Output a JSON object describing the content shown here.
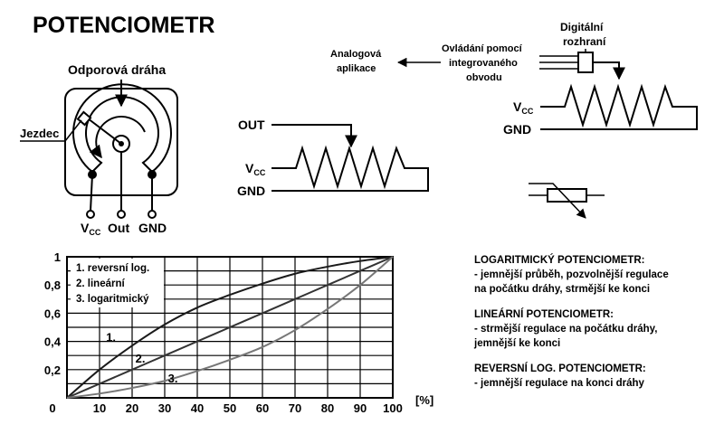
{
  "title": "POTENCIOMETR",
  "potentiometer": {
    "track_label": "Odporová dráha",
    "wiper_label": "Jezdec",
    "pin_labels": {
      "vcc": "V",
      "vcc_sub": "CC",
      "out": "Out",
      "gnd": "GND"
    }
  },
  "circuit_out": {
    "out_label": "OUT",
    "vcc_label": "V",
    "vcc_sub": "CC",
    "gnd_label": "GND"
  },
  "digital": {
    "interface_label": [
      "Digitální",
      "rozhraní"
    ],
    "control_label": [
      "Ovládání pomocí",
      "integrovaného",
      "obvodu"
    ],
    "analog_label": [
      "Analogová",
      "aplikace"
    ],
    "vcc_label": "V",
    "vcc_sub": "CC",
    "gnd_label": "GND"
  },
  "chart_data": {
    "type": "line",
    "x": [
      0,
      10,
      20,
      30,
      40,
      50,
      60,
      70,
      80,
      90,
      100
    ],
    "xlim": [
      0,
      100
    ],
    "ylim": [
      0,
      1
    ],
    "x_unit_label": "[%]",
    "x_tick_labels": [
      "0",
      "10",
      "20",
      "30",
      "40",
      "50",
      "60",
      "70",
      "80",
      "90",
      "100"
    ],
    "y_tick_labels": [
      "0,2",
      "0,4",
      "0,6",
      "0,8",
      "1"
    ],
    "y_tick_values": [
      0.2,
      0.4,
      0.6,
      0.8,
      1
    ],
    "grid": true,
    "legend": [
      "1. reversní log.",
      "2. lineární",
      "3. logaritmický"
    ],
    "series": [
      {
        "name": "1.",
        "values": [
          0,
          0.2,
          0.37,
          0.52,
          0.64,
          0.73,
          0.81,
          0.88,
          0.93,
          0.97,
          1.0
        ],
        "color": "#1a1a1a",
        "label_at": [
          12,
          0.4
        ]
      },
      {
        "name": "2.",
        "values": [
          0,
          0.1,
          0.2,
          0.3,
          0.4,
          0.5,
          0.6,
          0.7,
          0.8,
          0.9,
          1.0
        ],
        "color": "#333333",
        "label_at": [
          21,
          0.25
        ]
      },
      {
        "name": "3.",
        "values": [
          0,
          0.03,
          0.07,
          0.12,
          0.19,
          0.27,
          0.36,
          0.48,
          0.63,
          0.8,
          1.0
        ],
        "color": "#777777",
        "label_at": [
          31,
          0.11
        ]
      }
    ]
  },
  "info": [
    {
      "heading": "LOGARITMICKÝ POTENCIOMETR:",
      "lines": [
        "- jemnější průběh, pozvolnější regulace",
        "na počátku dráhy, strmější ke konci"
      ]
    },
    {
      "heading": "LINEÁRNÍ POTENCIOMETR:",
      "lines": [
        "- strmější regulace na počátku dráhy,",
        "jemnější ke konci"
      ]
    },
    {
      "heading": "REVERSNÍ LOG. POTENCIOMETR:",
      "lines": [
        "- jemnější regulace na konci dráhy"
      ]
    }
  ]
}
